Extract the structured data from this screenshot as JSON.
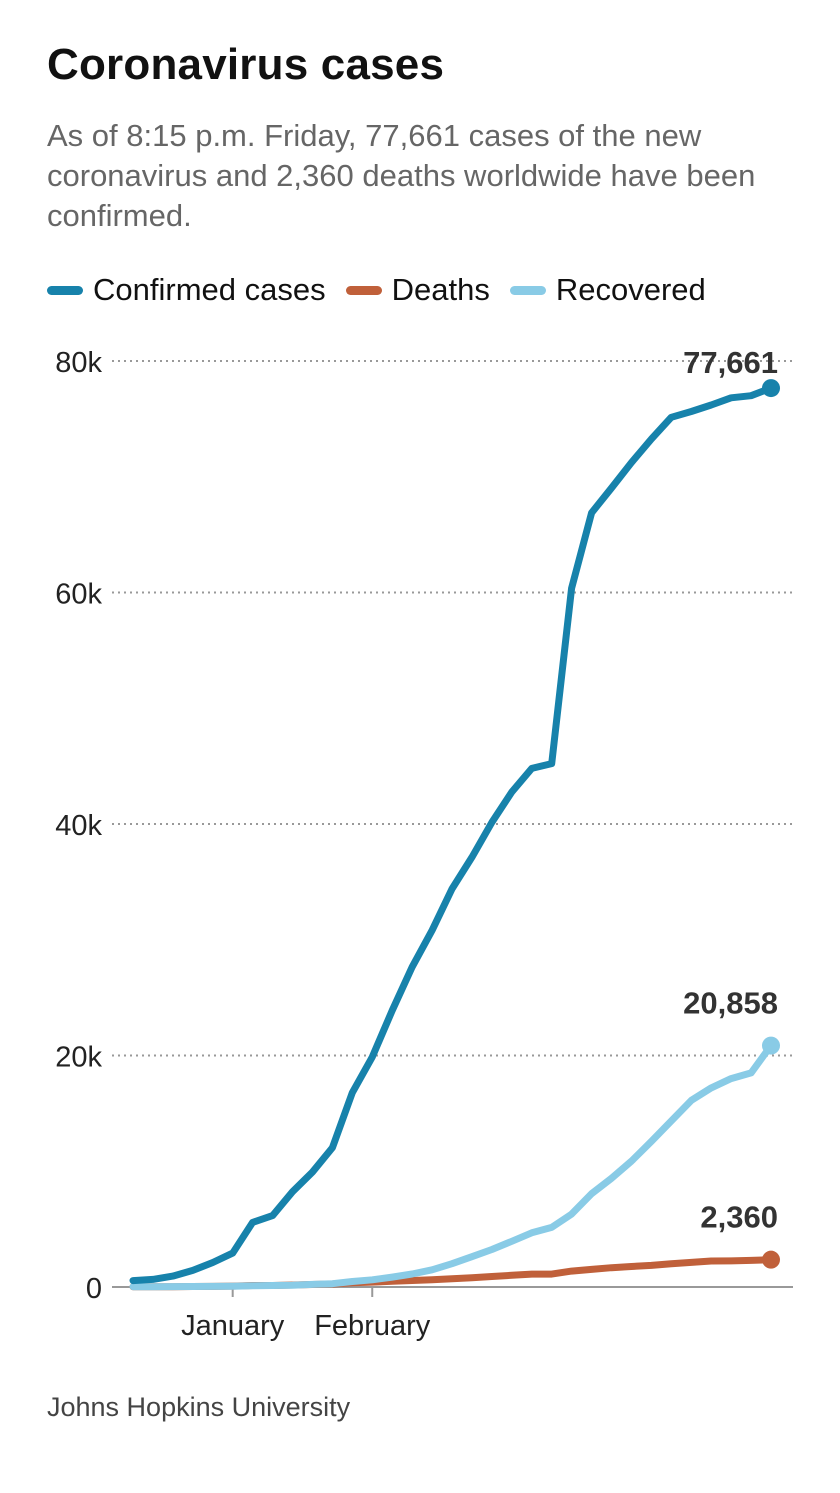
{
  "title": "Coronavirus cases",
  "subtitle": "As of 8:15 p.m. Friday, 77,661 cases of the new coronavirus and 2,360 deaths worldwide have been confirmed.",
  "source": "Johns Hopkins University",
  "chart_data": {
    "type": "line",
    "title": "Coronavirus cases",
    "xlabel": "",
    "ylabel": "",
    "ylim": [
      0,
      80000
    ],
    "yticks": [
      0,
      20000,
      40000,
      60000,
      80000
    ],
    "ytick_labels": [
      "0",
      "20k",
      "40k",
      "60k",
      "80k"
    ],
    "xtick_labels": [
      "January",
      "February"
    ],
    "x": [
      0,
      1,
      2,
      3,
      4,
      5,
      6,
      7,
      8,
      9,
      10,
      11,
      12,
      13,
      14,
      15,
      16,
      17,
      18,
      19,
      20,
      21,
      22,
      23,
      24,
      25,
      26,
      27,
      28,
      29,
      30,
      31,
      32
    ],
    "xtick_positions": [
      5,
      12
    ],
    "grid": true,
    "legend_position": "top",
    "series": [
      {
        "name": "Confirmed cases",
        "color": "#1782ab",
        "values": [
          555,
          654,
          941,
          1438,
          2118,
          2927,
          5578,
          6166,
          8234,
          9927,
          12038,
          16787,
          19881,
          23892,
          27635,
          30817,
          34391,
          37120,
          40150,
          42762,
          44802,
          45221,
          60368,
          66885,
          69030,
          71224,
          73258,
          75136,
          75639,
          76197,
          76819,
          77000,
          77661
        ],
        "end_label": "77,661"
      },
      {
        "name": "Deaths",
        "color": "#c0603a",
        "values": [
          17,
          18,
          26,
          42,
          56,
          82,
          131,
          133,
          171,
          213,
          259,
          362,
          426,
          492,
          564,
          634,
          719,
          806,
          906,
          1013,
          1113,
          1118,
          1371,
          1523,
          1666,
          1770,
          1868,
          2007,
          2122,
          2247,
          2251,
          2300,
          2360
        ],
        "end_label": "2,360"
      },
      {
        "name": "Recovered",
        "color": "#89cbe6",
        "values": [
          28,
          30,
          36,
          39,
          52,
          61,
          107,
          126,
          143,
          222,
          284,
          472,
          623,
          852,
          1124,
          1487,
          2011,
          2616,
          3244,
          3946,
          4683,
          5150,
          6295,
          8058,
          9395,
          10865,
          12583,
          14352,
          16121,
          17200,
          18000,
          18500,
          20858
        ],
        "end_label": "20,858"
      }
    ]
  }
}
